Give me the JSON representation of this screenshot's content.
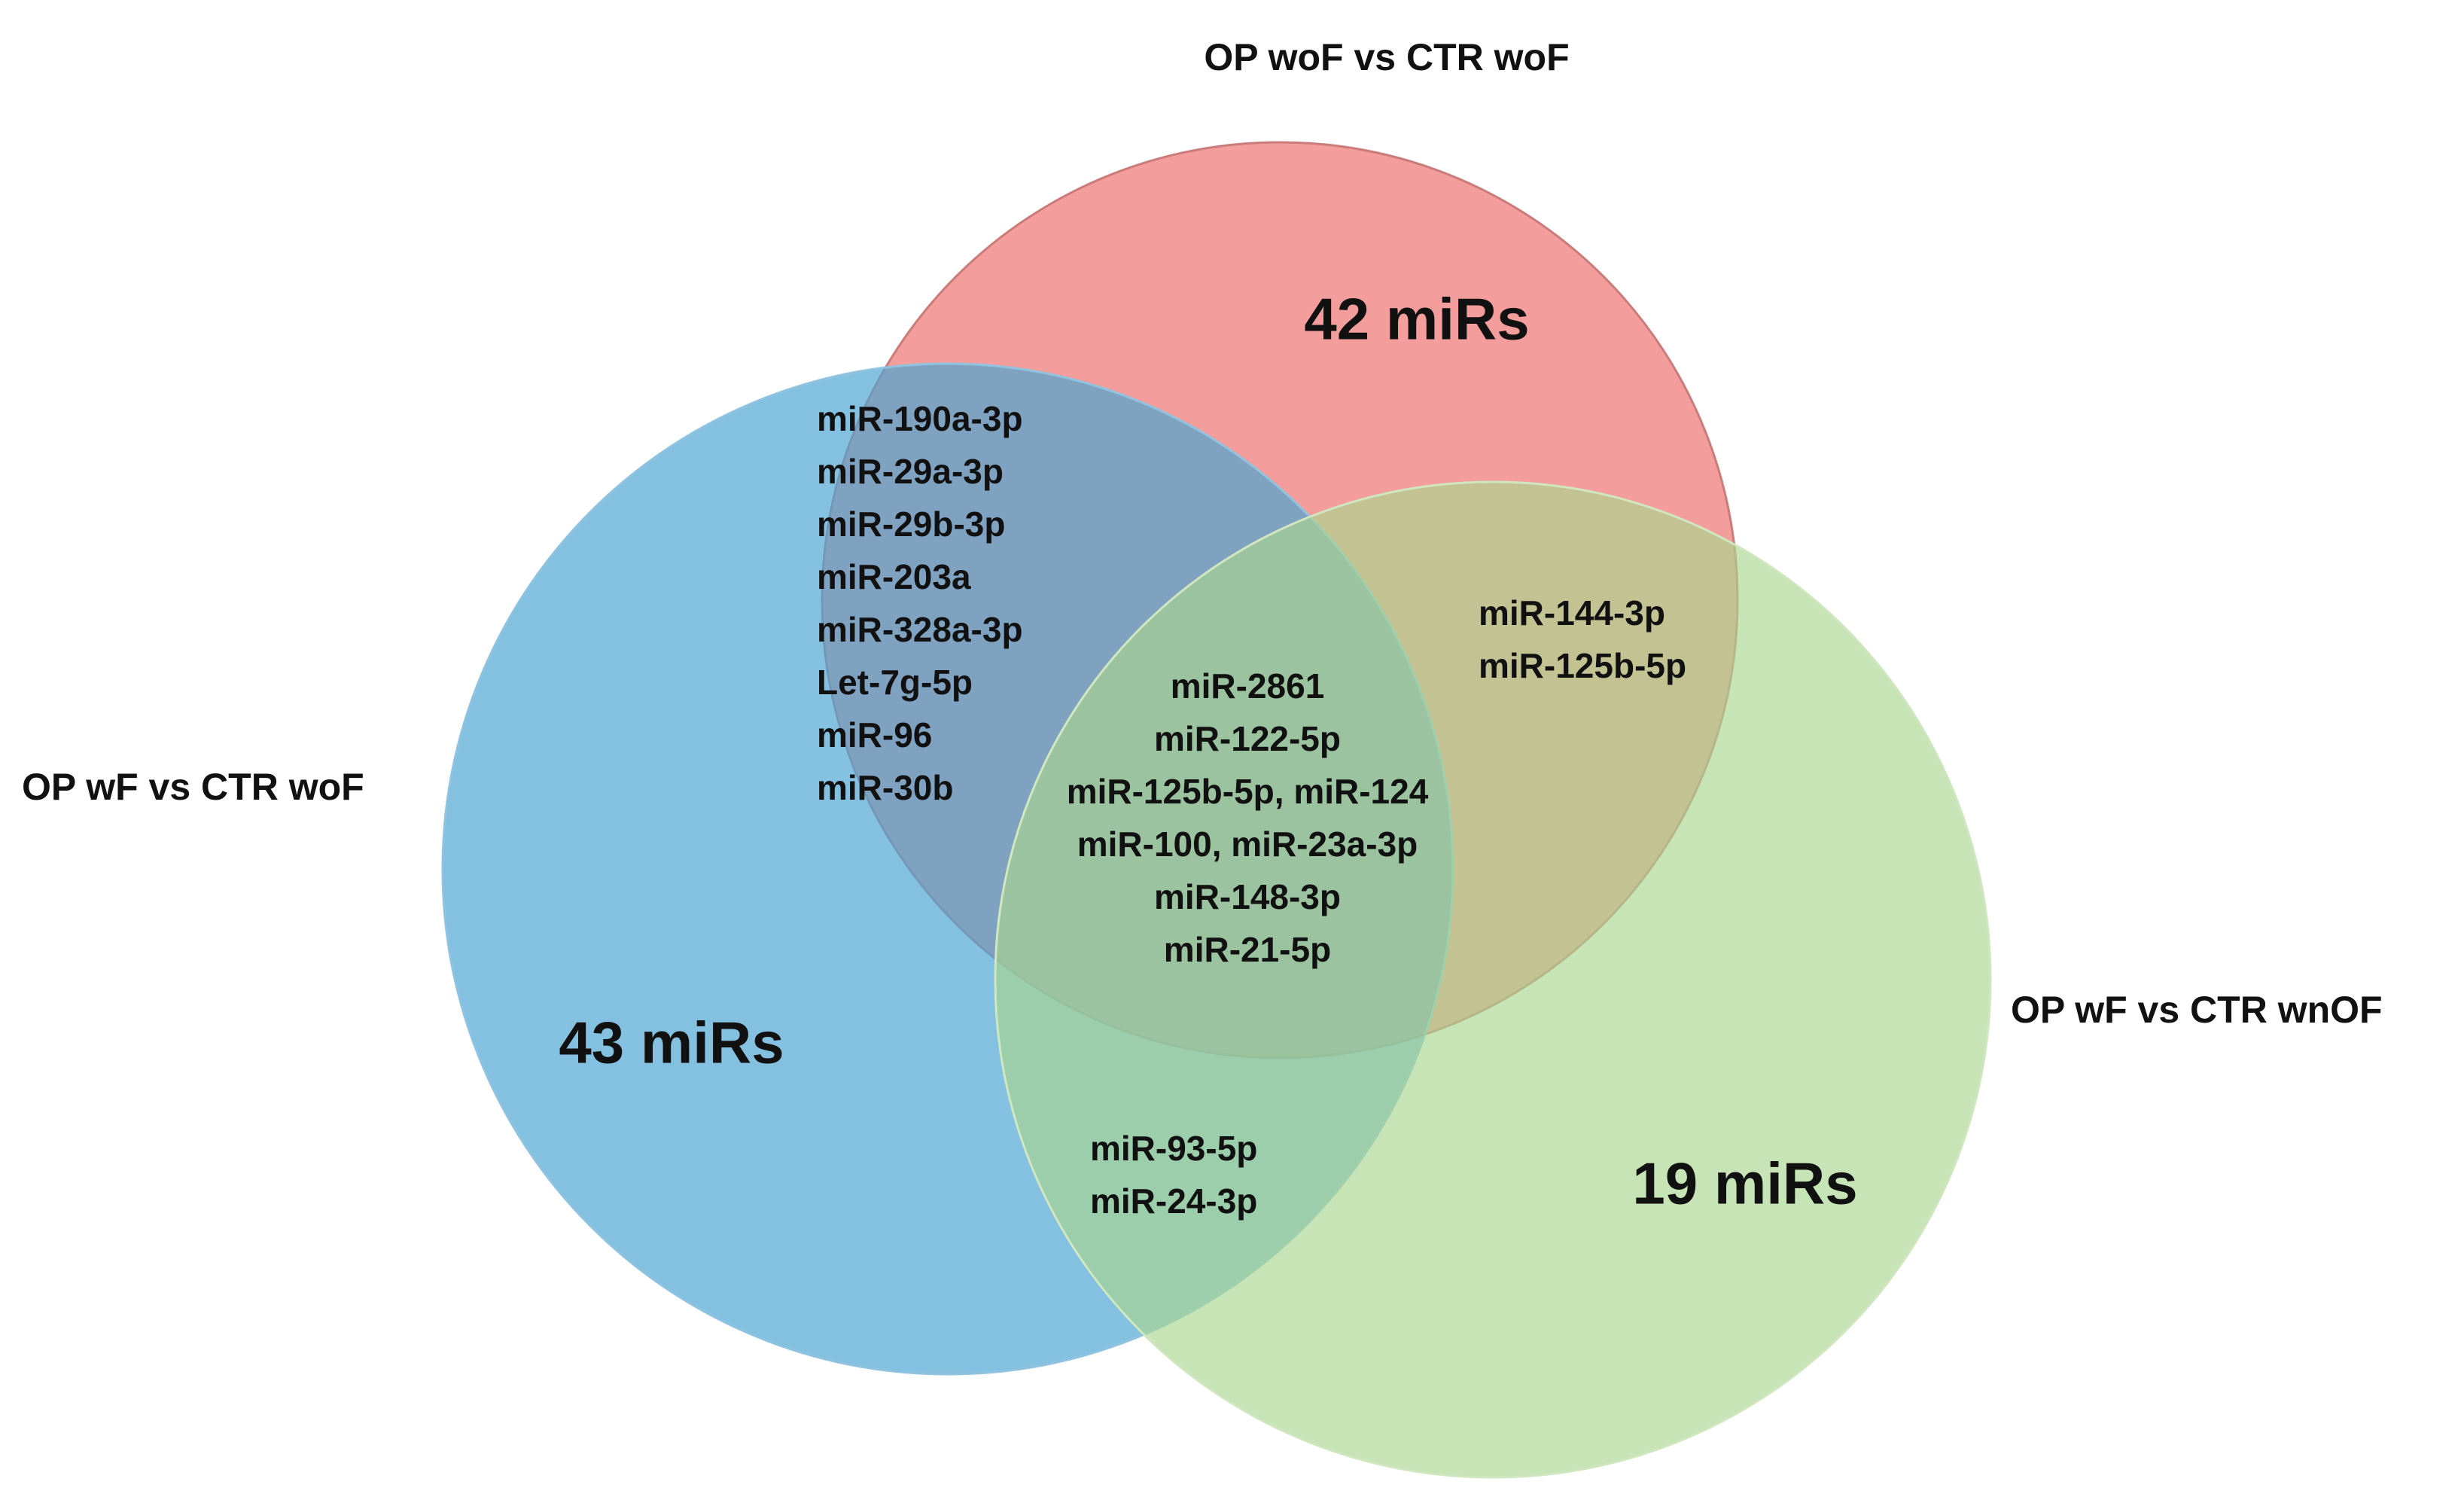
{
  "sets": [
    {
      "label": "OP woF vs CTR woF",
      "count": "42 miRs"
    },
    {
      "label": "OP wF vs CTR woF",
      "count": "43 miRs"
    },
    {
      "label": "OP wF vs CTR wnOF",
      "count": "19 miRs"
    }
  ],
  "regions": {
    "top_left": [
      "miR-190a-3p",
      "miR-29a-3p",
      "miR-29b-3p",
      "miR-203a",
      "miR-328a-3p",
      "Let-7g-5p",
      "miR-96",
      "miR-30b"
    ],
    "top_right": [
      "miR-144-3p",
      "miR-125b-5p"
    ],
    "center": [
      "miR-2861",
      "miR-122-5p",
      "miR-125b-5p, miR-124",
      "miR-100, miR-23a-3p",
      "miR-148-3p",
      "miR-21-5p"
    ],
    "bottom": [
      "miR-93-5p",
      "miR-24-3p"
    ]
  }
}
